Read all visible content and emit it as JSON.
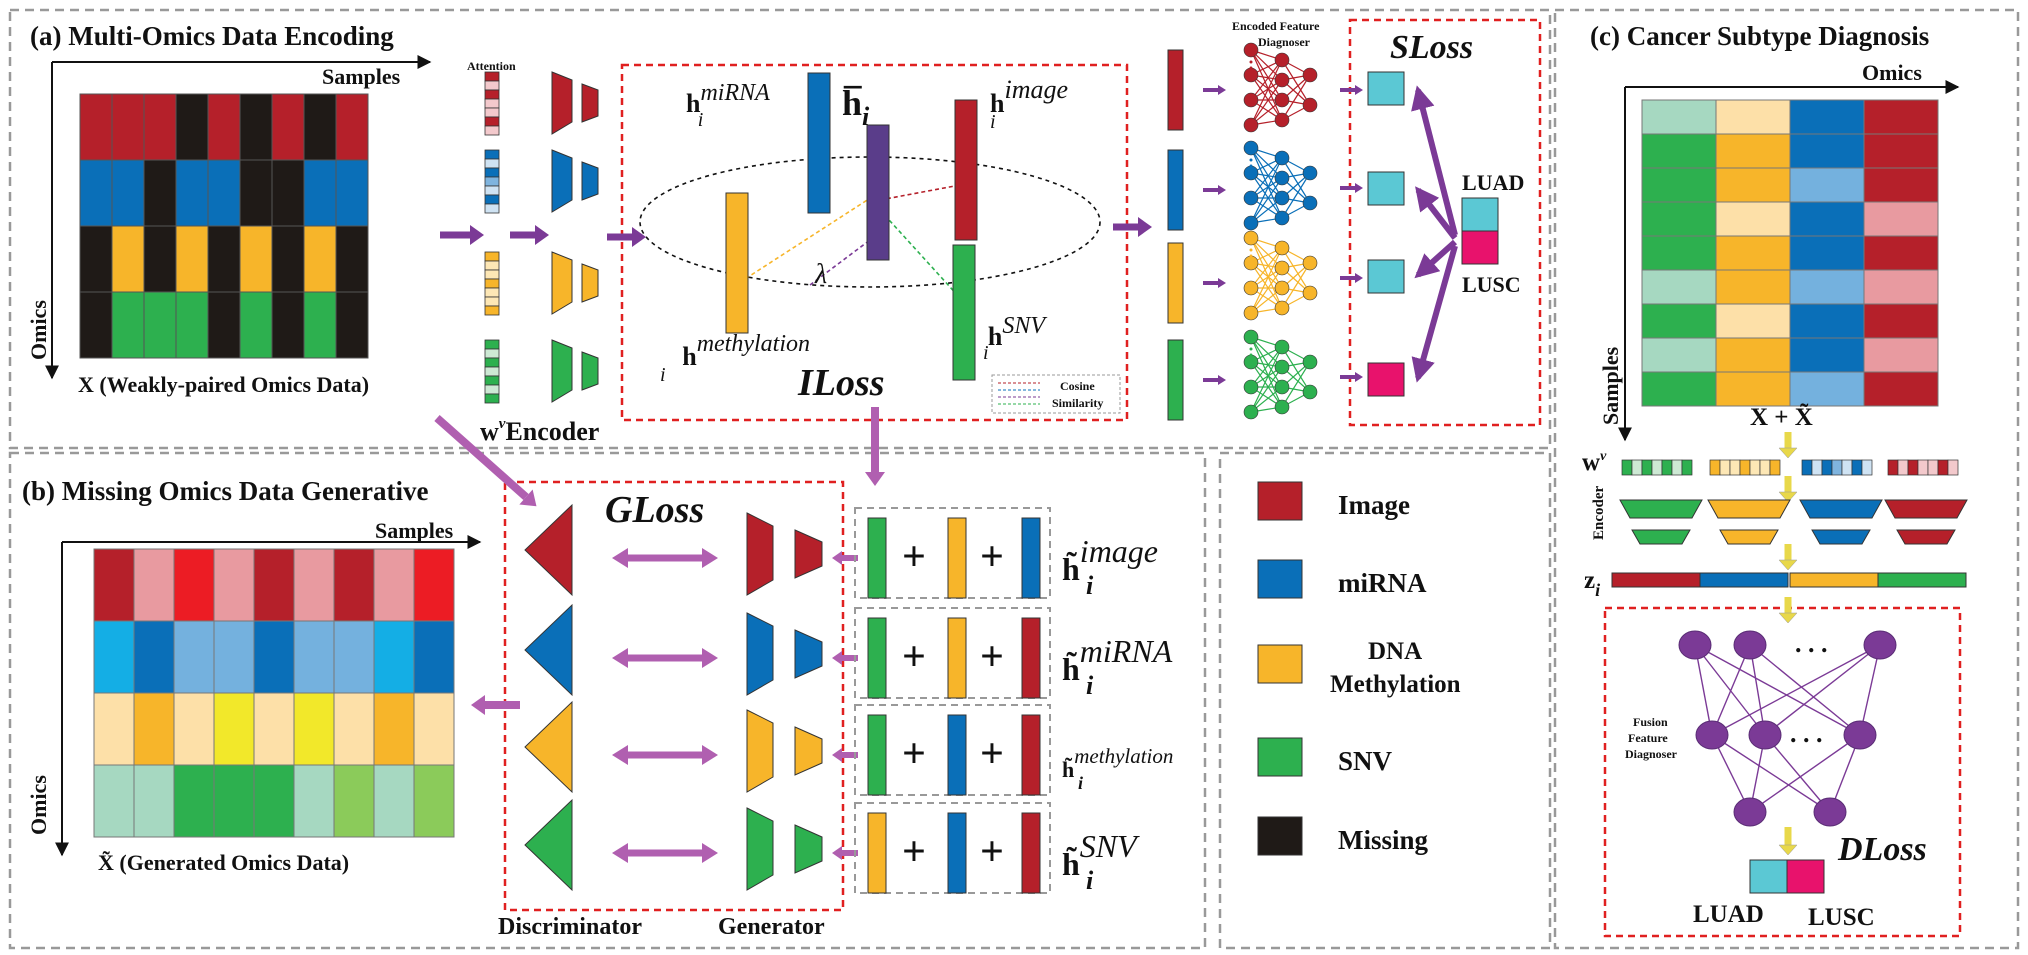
{
  "panels": {
    "a": "(a) Multi-Omics Data Encoding",
    "b": "(b) Missing Omics Data Generative",
    "c": "(c) Cancer Subtype Diagnosis"
  },
  "axes": {
    "samples": "Samples",
    "omics": "Omics"
  },
  "captions": {
    "x_input": "X (Weakly-paired Omics Data)",
    "x_generated": "X̃ (Generated Omics Data)",
    "x_sum": "X + X̃"
  },
  "labels": {
    "attention": "Attention",
    "wv": "w",
    "wv_sup": "v",
    "encoder": "Encoder",
    "encoded_feature_diagnoser_1": "Encoded Feature",
    "encoded_feature_diagnoser_2": "Diagnoser",
    "fusion_1": "Fusion",
    "fusion_2": "Feature",
    "fusion_3": "Diagnoser",
    "discriminator": "Discriminator",
    "generator": "Generator",
    "lambda": "λ",
    "cosine": "Cosine",
    "similarity": "Similarity",
    "h": "h",
    "h_tilde": "h̃",
    "h_bar": "h̅",
    "sub_i": "i",
    "z": "z",
    "ellipsis": ". . .",
    "plus": "+"
  },
  "omics_names": {
    "mirna": "miRNA",
    "image": "image",
    "methylation": "methylation",
    "snv": "SNV"
  },
  "losses": {
    "s": "SLoss",
    "i": "ILoss",
    "g": "GLoss",
    "d": "DLoss"
  },
  "classes": [
    "LUAD",
    "LUSC"
  ],
  "legend": [
    {
      "label": "Image",
      "color": "#b5202a"
    },
    {
      "label": "miRNA",
      "color": "#0a6fb8"
    },
    {
      "label": "DNA",
      "label2": "Methylation",
      "color": "#f7b52a"
    },
    {
      "label": "SNV",
      "color": "#2db04f"
    },
    {
      "label": "Missing",
      "color": "#1f1a17"
    }
  ],
  "colors": {
    "image": "#b5202a",
    "mirna": "#0a6fb8",
    "methylation": "#f7b52a",
    "snv": "#2db04f",
    "missing": "#1f1a17",
    "arrow": "#7b3a96",
    "arrow_pink": "#b05fb0",
    "luad": "#5bc8d4",
    "lusc": "#e8126c",
    "dashed_red": "#e02020",
    "node_purple": "#7b3a96"
  }
}
